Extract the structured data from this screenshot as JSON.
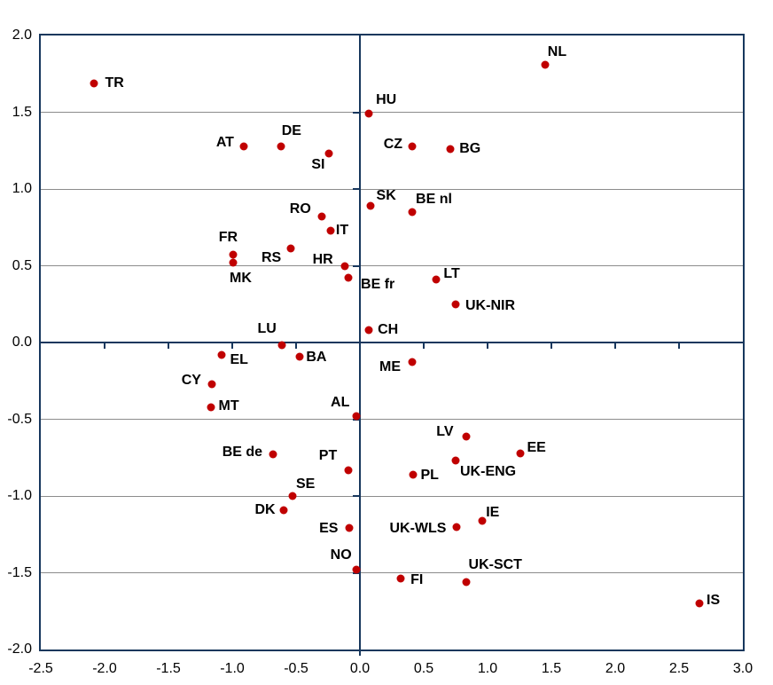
{
  "chart_data": {
    "type": "scatter",
    "title": "",
    "xlabel": "",
    "ylabel": "",
    "xlim": [
      -2.5,
      3.0
    ],
    "ylim": [
      -2.0,
      2.0
    ],
    "x_ticks": [
      -2.5,
      -2.0,
      -1.5,
      -1.0,
      -0.5,
      0.0,
      0.5,
      1.0,
      1.5,
      2.0,
      2.5,
      3.0
    ],
    "x_tick_labels": [
      "-2.5",
      "-2.0",
      "-1.5",
      "-1.0",
      "-0.5",
      "0.0",
      "0.5",
      "1.0",
      "1.5",
      "2.0",
      "2.5",
      "3.0"
    ],
    "y_ticks": [
      -2.0,
      -1.5,
      -1.0,
      -0.5,
      0.0,
      0.5,
      1.0,
      1.5,
      2.0
    ],
    "y_tick_labels": [
      "-2.0",
      "-1.5",
      "-1.0",
      "-0.5",
      "0.0",
      "0.5",
      "1.0",
      "1.5",
      "2.0"
    ],
    "grid": "horizontal-only",
    "gridline_step": 0.5,
    "legend": "none",
    "marker_color": "#C00000",
    "axis_color": "#17375D",
    "gridline_color": "#8C8C8C",
    "points": [
      {
        "label": "TR",
        "x": -2.08,
        "y": 1.69,
        "lp": [
          12,
          0,
          "l"
        ]
      },
      {
        "label": "NL",
        "x": 1.45,
        "y": 1.81,
        "lp": [
          3,
          -14,
          "l"
        ]
      },
      {
        "label": "HU",
        "x": 0.07,
        "y": 1.49,
        "lp": [
          8,
          -15,
          "l"
        ]
      },
      {
        "label": "CZ",
        "x": 0.41,
        "y": 1.28,
        "lp": [
          -11,
          -2,
          "r"
        ]
      },
      {
        "label": "BG",
        "x": 0.71,
        "y": 1.26,
        "lp": [
          10,
          0,
          "l"
        ]
      },
      {
        "label": "AT",
        "x": -0.91,
        "y": 1.28,
        "lp": [
          -11,
          -4,
          "r"
        ]
      },
      {
        "label": "DE",
        "x": -0.62,
        "y": 1.28,
        "lp": [
          1,
          -17,
          "l"
        ]
      },
      {
        "label": "SI",
        "x": -0.24,
        "y": 1.23,
        "lp": [
          -5,
          13,
          "r"
        ]
      },
      {
        "label": "SK",
        "x": 0.08,
        "y": 0.89,
        "lp": [
          7,
          -11,
          "l"
        ]
      },
      {
        "label": "BE nl",
        "x": 0.41,
        "y": 0.85,
        "lp": [
          4,
          -14,
          "l"
        ]
      },
      {
        "label": "RO",
        "x": -0.3,
        "y": 0.82,
        "lp": [
          -12,
          -8,
          "r"
        ]
      },
      {
        "label": "IT",
        "x": -0.23,
        "y": 0.73,
        "lp": [
          6,
          0,
          "l"
        ]
      },
      {
        "label": "RS",
        "x": -0.54,
        "y": 0.61,
        "lp": [
          -11,
          11,
          "r"
        ]
      },
      {
        "label": "FR",
        "x": -0.99,
        "y": 0.57,
        "lp": [
          -6,
          -19,
          "c"
        ]
      },
      {
        "label": "MK",
        "x": -0.99,
        "y": 0.52,
        "lp": [
          8,
          18,
          "c"
        ]
      },
      {
        "label": "HR",
        "x": -0.12,
        "y": 0.5,
        "lp": [
          -13,
          -7,
          "r"
        ]
      },
      {
        "label": "BE fr",
        "x": -0.09,
        "y": 0.42,
        "lp": [
          14,
          8,
          "l"
        ]
      },
      {
        "label": "LT",
        "x": 0.6,
        "y": 0.41,
        "lp": [
          8,
          -6,
          "l"
        ]
      },
      {
        "label": "UK-NIR",
        "x": 0.75,
        "y": 0.25,
        "lp": [
          11,
          2,
          "l"
        ]
      },
      {
        "label": "CH",
        "x": 0.07,
        "y": 0.08,
        "lp": [
          10,
          0,
          "l"
        ]
      },
      {
        "label": "LU",
        "x": -0.61,
        "y": -0.02,
        "lp": [
          -17,
          -18,
          "c"
        ]
      },
      {
        "label": "EL",
        "x": -1.08,
        "y": -0.08,
        "lp": [
          9,
          6,
          "l"
        ]
      },
      {
        "label": "BA",
        "x": -0.47,
        "y": -0.09,
        "lp": [
          7,
          1,
          "l"
        ]
      },
      {
        "label": "ME",
        "x": 0.41,
        "y": -0.13,
        "lp": [
          -13,
          6,
          "r"
        ]
      },
      {
        "label": "CY",
        "x": -1.16,
        "y": -0.27,
        "lp": [
          -12,
          -4,
          "r"
        ]
      },
      {
        "label": "MT",
        "x": -1.17,
        "y": -0.42,
        "lp": [
          9,
          -1,
          "l"
        ]
      },
      {
        "label": "AL",
        "x": -0.03,
        "y": -0.48,
        "lp": [
          -18,
          -15,
          "c"
        ]
      },
      {
        "label": "LV",
        "x": 0.83,
        "y": -0.61,
        "lp": [
          -14,
          -5,
          "r"
        ]
      },
      {
        "label": "EE",
        "x": 1.26,
        "y": -0.72,
        "lp": [
          7,
          -6,
          "l"
        ]
      },
      {
        "label": "BE de",
        "x": -0.68,
        "y": -0.73,
        "lp": [
          -12,
          -2,
          "r"
        ]
      },
      {
        "label": "UK-ENG",
        "x": 0.75,
        "y": -0.77,
        "lp": [
          5,
          13,
          "l"
        ]
      },
      {
        "label": "PT",
        "x": -0.09,
        "y": -0.83,
        "lp": [
          -23,
          -16,
          "c"
        ]
      },
      {
        "label": "PL",
        "x": 0.42,
        "y": -0.86,
        "lp": [
          8,
          1,
          "l"
        ]
      },
      {
        "label": "SE",
        "x": -0.53,
        "y": -1.0,
        "lp": [
          15,
          -13,
          "c"
        ]
      },
      {
        "label": "DK",
        "x": -0.6,
        "y": -1.09,
        "lp": [
          -9,
          0,
          "r"
        ]
      },
      {
        "label": "IE",
        "x": 0.96,
        "y": -1.16,
        "lp": [
          4,
          -9,
          "l"
        ]
      },
      {
        "label": "UK-WLS",
        "x": 0.76,
        "y": -1.2,
        "lp": [
          -12,
          2,
          "r"
        ]
      },
      {
        "label": "ES",
        "x": -0.08,
        "y": -1.21,
        "lp": [
          -13,
          1,
          "r"
        ]
      },
      {
        "label": "NO",
        "x": -0.03,
        "y": -1.48,
        "lp": [
          -17,
          -16,
          "c"
        ]
      },
      {
        "label": "FI",
        "x": 0.32,
        "y": -1.54,
        "lp": [
          11,
          2,
          "l"
        ]
      },
      {
        "label": "UK-SCT",
        "x": 0.83,
        "y": -1.56,
        "lp": [
          3,
          -19,
          "l"
        ]
      },
      {
        "label": "IS",
        "x": 2.66,
        "y": -1.7,
        "lp": [
          8,
          -3,
          "l"
        ]
      }
    ]
  }
}
